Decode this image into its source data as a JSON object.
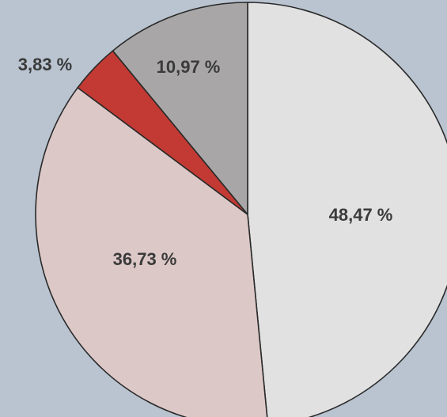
{
  "chart_data": {
    "type": "pie",
    "slices": [
      {
        "label": "48,47 %",
        "value": 48.47,
        "color": "#e2e1e1"
      },
      {
        "label": "36,73 %",
        "value": 36.73,
        "color": "#ddc8c8"
      },
      {
        "label": "3,83 %",
        "value": 3.83,
        "color": "#c23a33"
      },
      {
        "label": "10,97 %",
        "value": 10.97,
        "color": "#a8a6a6"
      }
    ],
    "start_angle_deg": 0,
    "direction": "clockwise",
    "outline_color": "#2a2a2a",
    "background_color": "#b9c4d0"
  }
}
